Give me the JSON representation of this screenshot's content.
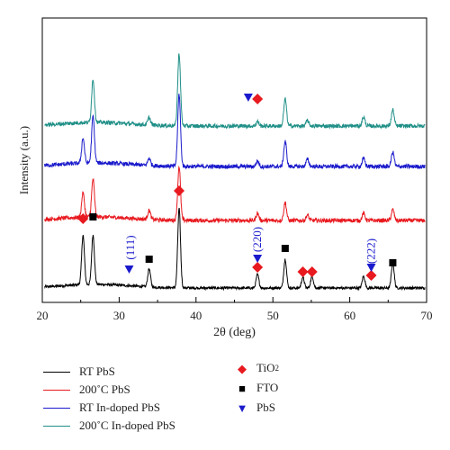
{
  "chart_data": {
    "type": "line",
    "xlabel": "2θ (deg)",
    "ylabel": "Intensity (a.u.)",
    "xlim": [
      20,
      70
    ],
    "xticks": [
      "20",
      "30",
      "40",
      "50",
      "60",
      "70"
    ],
    "yticks": "none",
    "grid": false,
    "legend_position": "below-plot",
    "series": [
      {
        "name": "RT PbS",
        "color": "#000000",
        "offset": 0,
        "peaks": [
          [
            25.3,
            55
          ],
          [
            26.6,
            55
          ],
          [
            33.9,
            20
          ],
          [
            37.8,
            88
          ],
          [
            48.0,
            15
          ],
          [
            51.6,
            32
          ],
          [
            53.9,
            12
          ],
          [
            55.1,
            13
          ],
          [
            61.8,
            13
          ],
          [
            65.6,
            28
          ]
        ]
      },
      {
        "name": "200˚C PbS",
        "color": "#e8191f",
        "offset": 75,
        "peaks": [
          [
            25.3,
            27
          ],
          [
            26.6,
            42
          ],
          [
            33.9,
            10
          ],
          [
            37.8,
            60
          ],
          [
            48.0,
            8
          ],
          [
            51.6,
            20
          ],
          [
            54.5,
            6
          ],
          [
            61.8,
            8
          ],
          [
            65.6,
            12
          ]
        ]
      },
      {
        "name": "RT In-doped PbS",
        "color": "#1a1acc",
        "offset": 135,
        "peaks": [
          [
            25.3,
            28
          ],
          [
            26.6,
            52
          ],
          [
            33.9,
            8
          ],
          [
            37.8,
            80
          ],
          [
            48.0,
            6
          ],
          [
            51.6,
            28
          ],
          [
            54.5,
            8
          ],
          [
            61.8,
            9
          ],
          [
            65.6,
            16
          ]
        ]
      },
      {
        "name": "200˚C In-doped PbS",
        "color": "#1f8f87",
        "offset": 180,
        "peaks": [
          [
            26.6,
            48
          ],
          [
            33.9,
            8
          ],
          [
            37.8,
            80
          ],
          [
            48.0,
            5
          ],
          [
            51.6,
            30
          ],
          [
            54.5,
            6
          ],
          [
            61.8,
            10
          ],
          [
            65.6,
            18
          ]
        ]
      }
    ],
    "markers": {
      "TiO2": [
        25.3,
        37.8,
        48.0,
        53.9,
        55.1,
        62.8
      ],
      "FTO": [
        26.6,
        33.9,
        51.6,
        65.6
      ],
      "PbS": [
        31.3,
        48.0,
        62.8
      ]
    },
    "annotations": [
      "(111)",
      "(220)",
      "(222)"
    ],
    "legend_entries": {
      "lines": [
        "RT PbS",
        "200˚C PbS",
        "RT In-doped PbS",
        "200˚C In-doped PbS"
      ],
      "markers": [
        {
          "label_main": "TiO",
          "label_sub": "2",
          "symbol": "◆",
          "color": "#e8191f"
        },
        {
          "label_main": "FTO",
          "label_sub": "",
          "symbol": "■",
          "color": "#000000"
        },
        {
          "label_main": "PbS",
          "label_sub": "",
          "symbol": "▼",
          "color": "#1a1acc"
        }
      ]
    }
  }
}
